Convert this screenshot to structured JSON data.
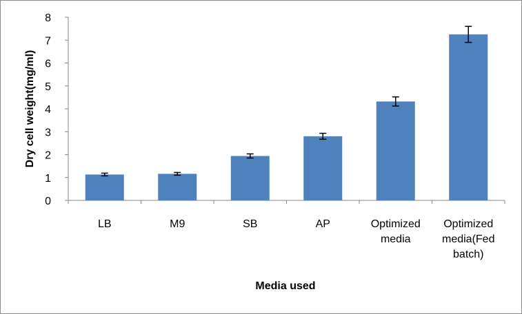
{
  "chart_data": {
    "type": "bar",
    "title": "",
    "xlabel": "Media used",
    "ylabel": "Dry cell weight(mg/ml)",
    "categories": [
      [
        "LB"
      ],
      [
        "M9"
      ],
      [
        "SB"
      ],
      [
        "AP"
      ],
      [
        "Optimized",
        "media"
      ],
      [
        "Optimized",
        "media(Fed",
        "batch)"
      ]
    ],
    "values": [
      1.13,
      1.16,
      1.94,
      2.8,
      4.32,
      7.25
    ],
    "errors": [
      0.06,
      0.06,
      0.09,
      0.13,
      0.2,
      0.35
    ],
    "ylim": [
      0,
      8
    ],
    "yticks": [
      "0",
      "1",
      "2",
      "3",
      "4",
      "5",
      "6",
      "7",
      "8"
    ],
    "bar_color": "#4f81bd",
    "grid": false,
    "legend": "none"
  }
}
